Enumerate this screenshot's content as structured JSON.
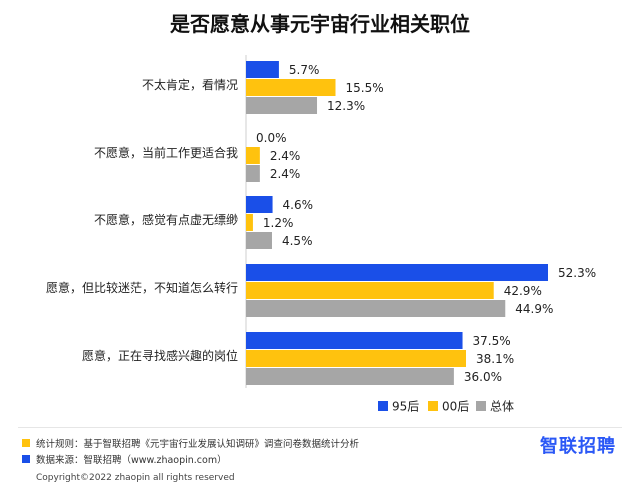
{
  "title": "是否愿意从事元宇宙行业相关职位",
  "chart_data": {
    "type": "bar",
    "orientation": "horizontal",
    "title": "是否愿意从事元宇宙行业相关职位",
    "categories": [
      "不太肯定，看情况",
      "不愿意，当前工作更适合我",
      "不愿意，感觉有点虚无缥缈",
      "愿意，但比较迷茫，不知道怎么转行",
      "愿意，正在寻找感兴趣的岗位"
    ],
    "series": [
      {
        "name": "95后",
        "color": "#1a4fe8",
        "values": [
          5.7,
          0.0,
          4.6,
          52.3,
          37.5
        ],
        "labels": [
          "5.7%",
          "0.0%",
          "4.6%",
          "52.3%",
          "37.5%"
        ]
      },
      {
        "name": "00后",
        "color": "#ffc20e",
        "values": [
          15.5,
          2.4,
          1.2,
          42.9,
          38.1
        ],
        "labels": [
          "15.5%",
          "2.4%",
          "1.2%",
          "42.9%",
          "38.1%"
        ]
      },
      {
        "name": "总体",
        "color": "#a6a6a6",
        "values": [
          12.3,
          2.4,
          4.5,
          44.9,
          36.0
        ],
        "labels": [
          "12.3%",
          "2.4%",
          "4.5%",
          "44.9%",
          "36.0%"
        ]
      }
    ],
    "xlim": [
      0,
      52.3
    ],
    "legend_position": "bottom-right",
    "grid": false
  },
  "footer": {
    "note1": "统计规则：基于智联招聘《元宇宙行业发展认知调研》调查问卷数据统计分析",
    "note1_color": "#ffc20e",
    "note2": "数据来源：智联招聘（www.zhaopin.com）",
    "note2_color": "#1a4fe8",
    "brand": "智联招聘",
    "copyright": "Copyright©2022 zhaopin all rights reserved"
  }
}
